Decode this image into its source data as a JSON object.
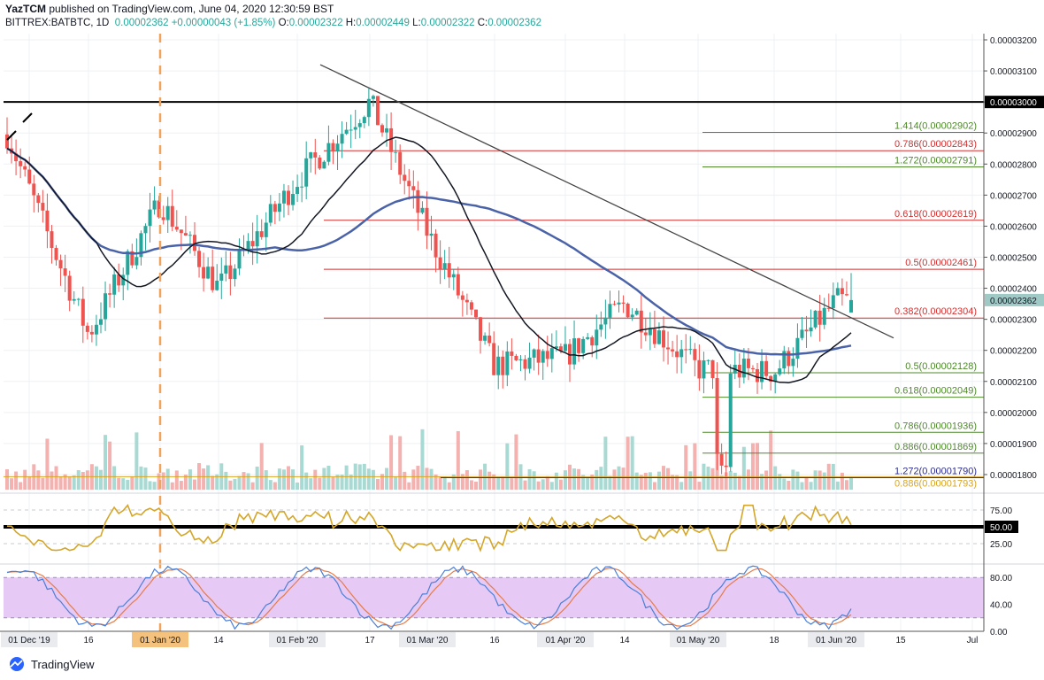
{
  "header": {
    "author": "YazTCM",
    "published_text": "published on TradingView.com, June 04, 2020 12:30:59 BST",
    "symbol": "BITTREX:BATBTC, 1D",
    "price": "0.00002362",
    "change": "+0.00000043 (+1.85%)",
    "o_label": "O:",
    "o": "0.00002322",
    "h_label": "H:",
    "h": "0.00002449",
    "l_label": "L:",
    "l": "0.00002322",
    "c_label": "C:",
    "c": "0.00002362"
  },
  "footer": {
    "brand": "TradingView"
  },
  "colors": {
    "up": "#26a69a",
    "down": "#ef5350",
    "ma200": "#4a62a8",
    "ma100": "#131722",
    "rsi": "#d4a62a",
    "fib_red": "#d32f2f",
    "fib_green": "#4e8a2a",
    "stoch_k": "#4a7fd6",
    "stoch_d": "#e57c4a",
    "stoch_band": "#e7c9f5",
    "current_price_tag": "#9ec9c4"
  },
  "chart_data": {
    "type": "candlestick",
    "y_axis": {
      "range": [
        1.74e-05,
        3.22e-05
      ],
      "ticks": [
        "0.00003200",
        "0.00003100",
        "0.00003000",
        "0.00002900",
        "0.00002800",
        "0.00002700",
        "0.00002600",
        "0.00002500",
        "0.00002400",
        "0.00002300",
        "0.00002200",
        "0.00002100",
        "0.00002000",
        "0.00001900",
        "0.00001800"
      ],
      "current_price_tag": "0.00002362",
      "round_level_tag": "0.00003000"
    },
    "x_axis": {
      "labels": [
        "01 Dec '19",
        "16",
        "01 Jan '20",
        "14",
        "01 Feb '20",
        "17",
        "01 Mar '20",
        "16",
        "01 Apr '20",
        "14",
        "01 May '20",
        "18",
        "01 Jun '20",
        "15",
        "Jul"
      ],
      "highlight": "01 Jan '20"
    },
    "price_path": [
      [
        "01 Dec '19",
        2.72e-05
      ],
      [
        "16",
        2.25e-05
      ],
      [
        "01 Jan '20",
        2.68e-05
      ],
      [
        "14",
        2.4e-05
      ],
      [
        "01 Feb '20",
        2.75e-05
      ],
      [
        "17",
        3e-05
      ],
      [
        "01 Mar '20",
        2.58e-05
      ],
      [
        "16",
        2.15e-05
      ],
      [
        "01 Apr '20",
        2.18e-05
      ],
      [
        "14",
        2.35e-05
      ],
      [
        "01 May '20",
        2.14e-05
      ],
      [
        "18",
        2.13e-05
      ],
      [
        "01 Jun '20",
        2.36e-05
      ]
    ],
    "retracement_levels": [
      {
        "label": "1.414(0.00002902)",
        "value": 2.902e-05,
        "color": "green"
      },
      {
        "label": "0.786(0.00002843)",
        "value": 2.843e-05,
        "color": "red"
      },
      {
        "label": "1.272(0.00002791)",
        "value": 2.791e-05,
        "color": "green"
      },
      {
        "label": "0.618(0.00002619)",
        "value": 2.619e-05,
        "color": "red"
      },
      {
        "label": "0.5(0.00002461)",
        "value": 2.461e-05,
        "color": "red"
      },
      {
        "label": "0.382(0.00002304)",
        "value": 2.304e-05,
        "color": "red"
      },
      {
        "label": "0.5(0.00002128)",
        "value": 2.128e-05,
        "color": "green"
      },
      {
        "label": "0.618(0.00002049)",
        "value": 2.049e-05,
        "color": "green"
      },
      {
        "label": "0.786(0.00001936)",
        "value": 1.936e-05,
        "color": "green"
      },
      {
        "label": "0.886(0.00001869)",
        "value": 1.869e-05,
        "color": "green"
      },
      {
        "label": "1.272(0.00001790)",
        "value": 1.79e-05,
        "color": "blue"
      },
      {
        "label": "0.886(0.00001793)",
        "value": 1.793e-05,
        "color": "orange"
      }
    ],
    "rsi": {
      "ticks": [
        "75.00",
        "25.00"
      ],
      "midline_tag": "50.00",
      "range": [
        0,
        100
      ]
    },
    "stoch": {
      "ticks": [
        "80.00",
        "40.00",
        "0.00"
      ],
      "range": [
        0,
        100
      ]
    }
  }
}
